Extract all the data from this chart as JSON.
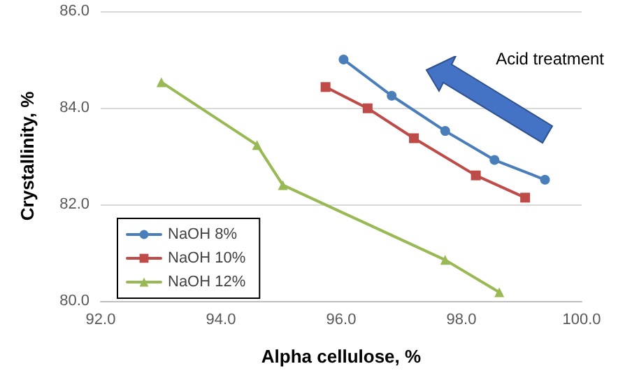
{
  "chart_data": {
    "type": "line",
    "xlabel": "Alpha cellulose, %",
    "ylabel": "Crystallinity, %",
    "annotations": [
      "Acid treatment"
    ],
    "series": [
      {
        "name": "NaOH 8%",
        "color": "#4a7ebb",
        "marker": "circle",
        "x": [
          96.04,
          96.84,
          97.73,
          98.55,
          99.39
        ],
        "values": [
          85.0,
          84.25,
          83.52,
          82.92,
          82.51
        ]
      },
      {
        "name": "NaOH 10%",
        "color": "#be4b48",
        "marker": "square",
        "x": [
          95.74,
          96.44,
          97.21,
          98.24,
          99.06
        ],
        "values": [
          84.43,
          83.99,
          83.37,
          82.6,
          82.14
        ]
      },
      {
        "name": "NaOH 12%",
        "color": "#98b954",
        "marker": "triangle",
        "x": [
          93.01,
          94.6,
          95.03,
          97.73,
          98.63
        ],
        "values": [
          84.53,
          83.23,
          82.4,
          80.85,
          80.18
        ]
      }
    ],
    "xlim": [
      92,
      100
    ],
    "xticks": [
      {
        "value": 92,
        "label": "92.0"
      },
      {
        "value": 94,
        "label": "94.0"
      },
      {
        "value": 96,
        "label": "96.0"
      },
      {
        "value": 98,
        "label": "98.0"
      },
      {
        "value": 100,
        "label": "100.0"
      }
    ],
    "ylim": [
      80,
      86
    ],
    "yticks": [
      {
        "value": 80,
        "label": "80.0"
      },
      {
        "value": 82,
        "label": "82.0"
      },
      {
        "value": 84,
        "label": "84.0"
      },
      {
        "value": 86,
        "label": "86.0"
      }
    ],
    "grid": "y",
    "legend": "bottom left",
    "line_style": "solid"
  }
}
